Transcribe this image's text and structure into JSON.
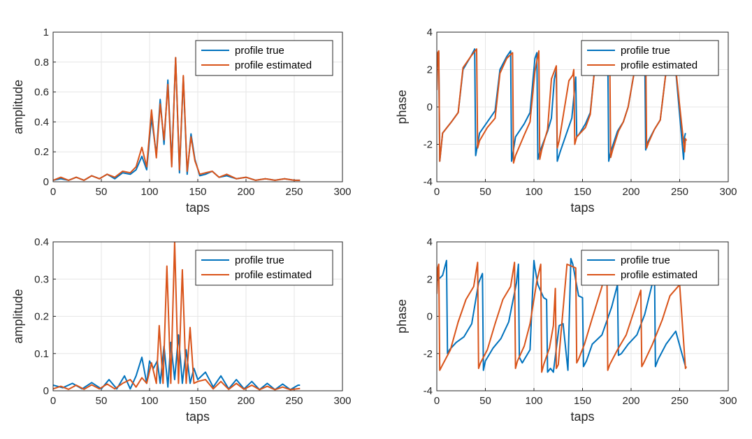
{
  "colors": {
    "true": "#0072BD",
    "estimated": "#D95319",
    "grid": "#e6e6e6",
    "axis": "#262626"
  },
  "chart_data": [
    {
      "type": "line",
      "panel": "top-left",
      "xlabel": "taps",
      "ylabel": "amplitude",
      "xlim": [
        0,
        300
      ],
      "ylim": [
        0,
        1
      ],
      "xticks": [
        "0",
        "50",
        "100",
        "150",
        "200",
        "250",
        "300"
      ],
      "yticks": [
        "0",
        "0.2",
        "0.4",
        "0.6",
        "0.8",
        "1"
      ],
      "legend_position": "top-right",
      "grid": true,
      "series": [
        {
          "name": "profile true",
          "key": "true",
          "x": [
            0,
            8,
            16,
            24,
            32,
            40,
            48,
            56,
            64,
            72,
            80,
            86,
            92,
            97,
            102,
            107,
            111,
            115,
            119,
            123,
            127,
            131,
            135,
            139,
            143,
            147,
            152,
            158,
            165,
            172,
            180,
            190,
            200,
            210,
            220,
            230,
            240,
            250,
            256
          ],
          "y": [
            0.01,
            0.02,
            0.01,
            0.03,
            0.01,
            0.04,
            0.02,
            0.05,
            0.02,
            0.06,
            0.05,
            0.08,
            0.17,
            0.08,
            0.43,
            0.18,
            0.55,
            0.25,
            0.68,
            0.12,
            0.83,
            0.06,
            0.7,
            0.05,
            0.32,
            0.15,
            0.04,
            0.05,
            0.07,
            0.03,
            0.04,
            0.02,
            0.03,
            0.01,
            0.02,
            0.01,
            0.02,
            0.01,
            0.01
          ]
        },
        {
          "name": "profile estimated",
          "key": "estimated",
          "x": [
            0,
            8,
            16,
            24,
            32,
            40,
            48,
            56,
            64,
            72,
            80,
            86,
            92,
            97,
            102,
            107,
            111,
            115,
            119,
            123,
            127,
            131,
            135,
            139,
            143,
            147,
            152,
            158,
            165,
            172,
            180,
            190,
            200,
            210,
            220,
            230,
            240,
            250,
            256
          ],
          "y": [
            0.01,
            0.03,
            0.01,
            0.03,
            0.01,
            0.04,
            0.02,
            0.05,
            0.03,
            0.07,
            0.06,
            0.1,
            0.23,
            0.1,
            0.48,
            0.16,
            0.52,
            0.28,
            0.65,
            0.1,
            0.83,
            0.08,
            0.71,
            0.07,
            0.3,
            0.14,
            0.05,
            0.06,
            0.07,
            0.03,
            0.05,
            0.02,
            0.03,
            0.01,
            0.02,
            0.01,
            0.02,
            0.01,
            0.01
          ]
        }
      ]
    },
    {
      "type": "line",
      "panel": "top-right",
      "xlabel": "taps",
      "ylabel": "phase",
      "xlim": [
        0,
        300
      ],
      "ylim": [
        -4,
        4
      ],
      "xticks": [
        "0",
        "50",
        "100",
        "150",
        "200",
        "250",
        "300"
      ],
      "yticks": [
        "-4",
        "-2",
        "0",
        "2",
        "4"
      ],
      "legend_position": "top-right",
      "grid": true,
      "series": [
        {
          "name": "profile true",
          "key": "true",
          "x": [
            0,
            2,
            3,
            6,
            15,
            22,
            27,
            35,
            39,
            40,
            41,
            44,
            52,
            60,
            65,
            72,
            76,
            77,
            78,
            81,
            90,
            96,
            101,
            103,
            104,
            106,
            114,
            118,
            121,
            123,
            124,
            127,
            135,
            139,
            143,
            144,
            146,
            153,
            158,
            162,
            170,
            176,
            177,
            179,
            186,
            192,
            197,
            205,
            214,
            215,
            217,
            224,
            230,
            236,
            244,
            254,
            255,
            256
          ],
          "y": [
            1.9,
            2.9,
            -2.9,
            -1.4,
            -0.8,
            -0.3,
            2.0,
            2.7,
            3.1,
            -2.6,
            -2.3,
            -1.4,
            -0.8,
            -0.2,
            2.0,
            2.7,
            3.0,
            -2.9,
            -2.6,
            -1.6,
            -0.9,
            -0.3,
            2.6,
            2.9,
            -2.8,
            -2.4,
            -1.3,
            -0.6,
            1.5,
            2.0,
            -2.9,
            -2.4,
            -1.2,
            -0.6,
            1.6,
            -1.6,
            -1.5,
            -0.9,
            -0.3,
            1.8,
            2.7,
            3.0,
            -2.9,
            -2.4,
            -1.3,
            -0.8,
            0.0,
            2.4,
            3.1,
            -2.3,
            -1.9,
            -1.2,
            -0.7,
            1.9,
            3.1,
            -2.8,
            -1.6,
            -1.4
          ]
        },
        {
          "name": "profile estimated",
          "key": "estimated",
          "x": [
            0,
            1,
            2,
            3,
            6,
            15,
            22,
            27,
            35,
            41,
            42,
            44,
            52,
            60,
            65,
            72,
            78,
            79,
            81,
            90,
            96,
            101,
            105,
            106,
            108,
            114,
            118,
            123,
            124,
            126,
            136,
            140,
            141,
            142,
            144,
            153,
            158,
            162,
            170,
            178,
            179,
            181,
            187,
            192,
            197,
            205,
            215,
            216,
            218,
            224,
            230,
            236,
            244,
            255,
            256,
            257
          ],
          "y": [
            0.9,
            2.9,
            3.0,
            -2.9,
            -1.4,
            -0.8,
            -0.3,
            2.1,
            2.7,
            3.1,
            -2.2,
            -1.8,
            -1.1,
            -0.6,
            1.8,
            2.6,
            2.9,
            -3.0,
            -2.6,
            -1.5,
            -0.8,
            1.9,
            3.0,
            -2.8,
            -2.3,
            -1.2,
            1.5,
            2.2,
            -2.2,
            -1.8,
            1.4,
            1.7,
            2.0,
            -2.0,
            -1.6,
            -1.1,
            -0.4,
            1.8,
            2.6,
            3.0,
            -2.7,
            -2.3,
            -1.3,
            -0.8,
            0.0,
            2.4,
            3.0,
            -2.2,
            -1.9,
            -1.2,
            -0.7,
            1.9,
            3.0,
            -2.4,
            -1.7,
            -1.8
          ]
        }
      ]
    },
    {
      "type": "line",
      "panel": "bottom-left",
      "xlabel": "taps",
      "ylabel": "amplitude",
      "xlim": [
        0,
        300
      ],
      "ylim": [
        0,
        0.4
      ],
      "xticks": [
        "0",
        "50",
        "100",
        "150",
        "200",
        "250",
        "300"
      ],
      "yticks": [
        "0",
        "0.1",
        "0.2",
        "0.3",
        "0.4"
      ],
      "legend_position": "top-right",
      "grid": true,
      "series": [
        {
          "name": "profile true",
          "key": "true",
          "x": [
            0,
            10,
            20,
            30,
            40,
            50,
            58,
            66,
            74,
            80,
            86,
            92,
            97,
            100,
            104,
            108,
            111,
            115,
            119,
            122,
            126,
            130,
            134,
            138,
            142,
            146,
            150,
            158,
            166,
            174,
            182,
            190,
            198,
            206,
            214,
            222,
            230,
            238,
            246,
            254,
            256
          ],
          "y": [
            0.015,
            0.008,
            0.02,
            0.005,
            0.022,
            0.005,
            0.03,
            0.005,
            0.04,
            0.005,
            0.04,
            0.09,
            0.02,
            0.08,
            0.06,
            0.08,
            0.02,
            0.12,
            0.01,
            0.13,
            0.03,
            0.15,
            0.02,
            0.11,
            0.02,
            0.06,
            0.03,
            0.05,
            0.01,
            0.04,
            0.005,
            0.03,
            0.005,
            0.025,
            0.003,
            0.02,
            0.003,
            0.018,
            0.003,
            0.015,
            0.015
          ]
        },
        {
          "name": "profile estimated",
          "key": "estimated",
          "x": [
            0,
            8,
            16,
            24,
            32,
            40,
            48,
            56,
            64,
            72,
            80,
            86,
            92,
            97,
            102,
            107,
            110,
            114,
            118,
            122,
            126,
            130,
            134,
            138,
            142,
            146,
            150,
            158,
            166,
            174,
            182,
            190,
            198,
            206,
            214,
            222,
            230,
            238,
            246,
            256
          ],
          "y": [
            0.005,
            0.012,
            0.004,
            0.015,
            0.004,
            0.016,
            0.005,
            0.018,
            0.005,
            0.02,
            0.03,
            0.01,
            0.035,
            0.02,
            0.075,
            0.02,
            0.175,
            0.02,
            0.335,
            0.02,
            0.4,
            0.02,
            0.325,
            0.02,
            0.17,
            0.02,
            0.025,
            0.03,
            0.005,
            0.025,
            0.004,
            0.02,
            0.004,
            0.015,
            0.003,
            0.012,
            0.003,
            0.01,
            0.003,
            0.006
          ]
        }
      ]
    },
    {
      "type": "line",
      "panel": "bottom-right",
      "xlabel": "taps",
      "ylabel": "phase",
      "xlim": [
        0,
        300
      ],
      "ylim": [
        -4,
        4
      ],
      "xticks": [
        "0",
        "50",
        "100",
        "150",
        "200",
        "250",
        "300"
      ],
      "yticks": [
        "-4",
        "-2",
        "0",
        "2",
        "4"
      ],
      "legend_position": "top-right",
      "grid": true,
      "series": [
        {
          "name": "profile true",
          "key": "true",
          "x": [
            0,
            2,
            6,
            10,
            11,
            13,
            20,
            28,
            36,
            43,
            47,
            48,
            50,
            58,
            66,
            74,
            82,
            84,
            85,
            88,
            96,
            100,
            101,
            104,
            110,
            113,
            114,
            117,
            120,
            126,
            130,
            135,
            138,
            140,
            146,
            150,
            151,
            154,
            160,
            170,
            180,
            186,
            187,
            190,
            197,
            206,
            214,
            222,
            224,
            225,
            228,
            236,
            246,
            256
          ],
          "y": [
            1.9,
            2.0,
            2.2,
            3.0,
            -2.0,
            -1.8,
            -1.4,
            -1.1,
            -0.4,
            1.8,
            2.3,
            -2.9,
            -2.4,
            -1.7,
            -1.2,
            -0.3,
            1.8,
            2.8,
            -2.2,
            -2.5,
            -1.8,
            3.0,
            2.6,
            1.7,
            1.0,
            0.9,
            -3.0,
            -2.8,
            -3.0,
            -0.5,
            -0.4,
            -2.9,
            3.1,
            2.8,
            1.1,
            1.0,
            -2.7,
            -2.4,
            -1.5,
            -1.0,
            0.5,
            1.7,
            -2.1,
            -2.0,
            -1.5,
            -1.0,
            0.1,
            1.8,
            2.9,
            -2.7,
            -2.3,
            -1.5,
            -0.8,
            -2.7
          ]
        },
        {
          "name": "profile estimated",
          "key": "estimated",
          "x": [
            0,
            1,
            2,
            3,
            6,
            14,
            22,
            30,
            38,
            42,
            43,
            45,
            52,
            60,
            68,
            76,
            80,
            81,
            83,
            90,
            96,
            103,
            107,
            108,
            110,
            116,
            120,
            122,
            123,
            125,
            134,
            143,
            144,
            146,
            152,
            160,
            170,
            175,
            176,
            178,
            186,
            195,
            205,
            210,
            211,
            213,
            222,
            232,
            240,
            250,
            256,
            257
          ],
          "y": [
            1.2,
            2.6,
            2.8,
            -2.9,
            -2.6,
            -1.8,
            -0.3,
            0.9,
            1.6,
            2.9,
            -2.8,
            -2.5,
            -1.8,
            -0.4,
            0.9,
            1.6,
            2.9,
            -2.8,
            -2.4,
            -1.6,
            -0.4,
            1.9,
            2.8,
            -3.0,
            -2.6,
            -1.7,
            -0.5,
            1.5,
            -2.8,
            -2.6,
            2.8,
            2.6,
            -2.5,
            -2.3,
            -1.5,
            -0.1,
            1.6,
            3.0,
            -2.9,
            -2.6,
            -1.8,
            -1.0,
            0.6,
            1.4,
            -2.7,
            -2.5,
            -1.5,
            -0.2,
            1.1,
            1.7,
            -2.8,
            -2.7
          ]
        }
      ]
    }
  ]
}
